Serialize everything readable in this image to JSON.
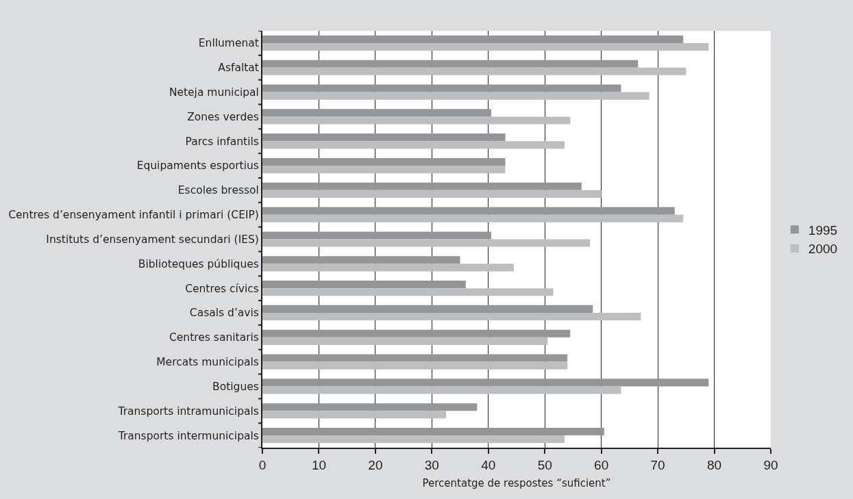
{
  "chart_data": {
    "type": "bar",
    "orientation": "horizontal",
    "xlabel": "Percentatge de respostes “suficient”",
    "categories": [
      "Enllumenat",
      "Asfaltat",
      "Neteja municipal",
      "Zones verdes",
      "Parcs infantils",
      "Equipaments esportius",
      "Escoles bressol",
      "Centres d’ensenyament infantil i primari (CEIP)",
      "Instituts d’ensenyament secundari (IES)",
      "Biblioteques públiques",
      "Centres cívics",
      "Casals d’avis",
      "Centres sanitaris",
      "Mercats municipals",
      "Botigues",
      "Transports intramunicipals",
      "Transports intermunicipals"
    ],
    "series": [
      {
        "name": "1995",
        "color": "#939598",
        "values": [
          74.5,
          66.5,
          63.5,
          40.5,
          43,
          43,
          56.5,
          73,
          40.5,
          35,
          36,
          58.5,
          54.5,
          54,
          79,
          38,
          60.5
        ]
      },
      {
        "name": "2000",
        "color": "#bdbec0",
        "values": [
          79,
          75,
          68.5,
          54.5,
          53.5,
          43,
          60,
          74.5,
          58,
          44.5,
          51.5,
          67,
          50.5,
          54,
          63.5,
          32.5,
          53.5
        ]
      }
    ],
    "xlim": [
      0,
      90
    ],
    "xticks": [
      0,
      10,
      20,
      30,
      40,
      50,
      60,
      70,
      80,
      90
    ],
    "grid": "x",
    "legend": "right"
  }
}
